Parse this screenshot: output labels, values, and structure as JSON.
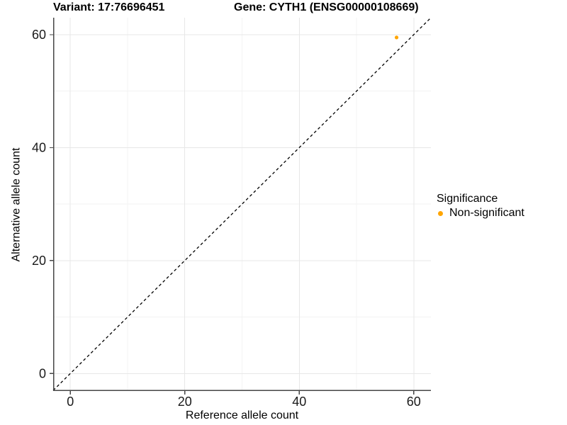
{
  "chart_data": {
    "type": "scatter",
    "title_variant": "Variant: 17:76696451",
    "title_gene": "Gene: CYTH1 (ENSG00000108669)",
    "xlabel": "Reference allele count",
    "ylabel": "Alternative allele count",
    "xlim": [
      -3,
      63
    ],
    "ylim": [
      -3.1,
      63
    ],
    "xticks": [
      0,
      20,
      40,
      60
    ],
    "yticks": [
      0,
      20,
      40,
      60
    ],
    "xticks_minor": [
      10,
      30,
      50
    ],
    "yticks_minor": [
      10,
      30,
      50
    ],
    "grid": "major and minor gridlines on white background",
    "identity_line": {
      "slope": 1,
      "intercept": 0,
      "style": "dashed",
      "color": "#000000"
    },
    "series": [
      {
        "name": "Non-significant",
        "color": "#FFA500",
        "points": [
          {
            "x": 57,
            "y": 59.5
          }
        ]
      }
    ],
    "legend": {
      "title": "Significance",
      "position": "right",
      "entries": [
        {
          "label": "Non-significant",
          "color": "#FFA500"
        }
      ]
    },
    "colors": {
      "grid_major": "#E7E7E7",
      "grid_minor": "#F3F3F3",
      "axis_line": "#464646",
      "tick_text": "#1a1a1a",
      "point": "#FFA500"
    }
  }
}
